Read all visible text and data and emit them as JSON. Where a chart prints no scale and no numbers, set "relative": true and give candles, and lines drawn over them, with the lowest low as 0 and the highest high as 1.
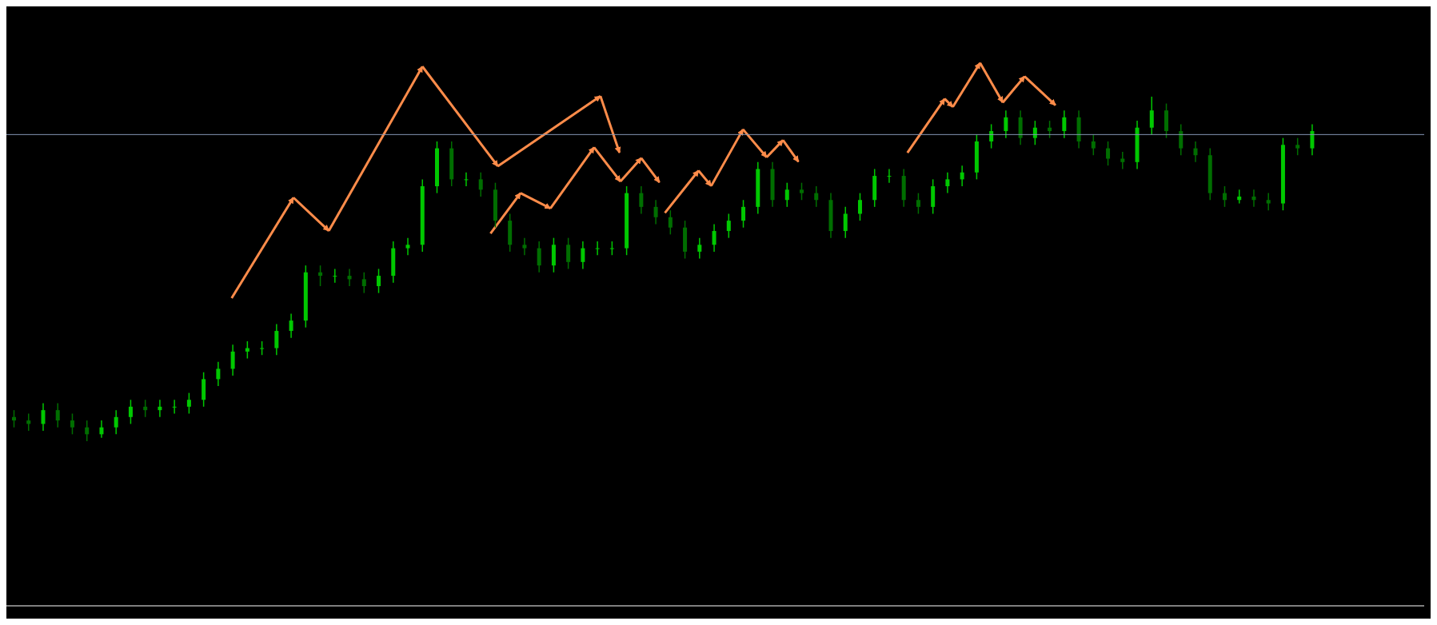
{
  "chart_data": {
    "type": "candlestick",
    "relative": true,
    "tick_labels": false,
    "categories": [
      null,
      null,
      null,
      null,
      null,
      null,
      null,
      null,
      null,
      null,
      null,
      null,
      null,
      null,
      null,
      null,
      null,
      null,
      null,
      null,
      null,
      null,
      null,
      null,
      null,
      null,
      null,
      null,
      null,
      null,
      null,
      null,
      null,
      null,
      null,
      null,
      null,
      null,
      null,
      null,
      null,
      null,
      null,
      null,
      null,
      null,
      null,
      null,
      null,
      null,
      null,
      null,
      null,
      null,
      null,
      null,
      null,
      null,
      null,
      null,
      null,
      null,
      null,
      null,
      null,
      null,
      null,
      null,
      null,
      null,
      null,
      null,
      null,
      null,
      null,
      null,
      null,
      null,
      null,
      null,
      null,
      null,
      null,
      null,
      null,
      null,
      null,
      null,
      null,
      null
    ],
    "colors": [
      "#006e00",
      "#006e00",
      "#00c800",
      "#006e00",
      "#006e00",
      "#006e00",
      "#00c800",
      "#00c800",
      "#00c800",
      "#006e00",
      "#00c800",
      "#00c800",
      "#00c800",
      "#00c800",
      "#00c800",
      "#00c800",
      "#00c800",
      "#00c800",
      "#00c800",
      "#00c800",
      "#00c800",
      "#006e00",
      "#00c800",
      "#006e00",
      "#006e00",
      "#00c800",
      "#00c800",
      "#00c800",
      "#00c800",
      "#00c800",
      "#006e00",
      "#00c800",
      "#006e00",
      "#006e00",
      "#006e00",
      "#006e00",
      "#006e00",
      "#00c800",
      "#006e00",
      "#00c800",
      "#00c800",
      "#00c800",
      "#00c800",
      "#006e00",
      "#006e00",
      "#006e00",
      "#006e00",
      "#00c800",
      "#00c800",
      "#00c800",
      "#00c800",
      "#00c800",
      "#006e00",
      "#00c800",
      "#006e00",
      "#006e00",
      "#006e00",
      "#00c800",
      "#00c800",
      "#00c800",
      "#00c800",
      "#006e00",
      "#006e00",
      "#00c800",
      "#00c800",
      "#00c800",
      "#00c800",
      "#00c800",
      "#00c800",
      "#006e00",
      "#00c800",
      "#006e00",
      "#00c800",
      "#006e00",
      "#006e00",
      "#006e00",
      "#006e00",
      "#00c800",
      "#00c800",
      "#006e00",
      "#006e00",
      "#006e00",
      "#006e00",
      "#006e00",
      "#00c800",
      "#006e00",
      "#006e00",
      "#00c800",
      "#006e00",
      "#00c800"
    ],
    "ohlc": [
      [
        0.07,
        0.09,
        0.04,
        0.06
      ],
      [
        0.06,
        0.08,
        0.03,
        0.05
      ],
      [
        0.05,
        0.11,
        0.03,
        0.09
      ],
      [
        0.09,
        0.11,
        0.04,
        0.06
      ],
      [
        0.06,
        0.08,
        0.02,
        0.04
      ],
      [
        0.04,
        0.06,
        0.0,
        0.02
      ],
      [
        0.02,
        0.06,
        0.01,
        0.04
      ],
      [
        0.04,
        0.09,
        0.02,
        0.07
      ],
      [
        0.07,
        0.12,
        0.05,
        0.1
      ],
      [
        0.1,
        0.12,
        0.07,
        0.09
      ],
      [
        0.09,
        0.12,
        0.07,
        0.1
      ],
      [
        0.1,
        0.12,
        0.08,
        0.1
      ],
      [
        0.1,
        0.14,
        0.08,
        0.12
      ],
      [
        0.12,
        0.2,
        0.1,
        0.18
      ],
      [
        0.18,
        0.23,
        0.16,
        0.21
      ],
      [
        0.21,
        0.28,
        0.19,
        0.26
      ],
      [
        0.26,
        0.29,
        0.24,
        0.27
      ],
      [
        0.27,
        0.29,
        0.25,
        0.27
      ],
      [
        0.27,
        0.34,
        0.25,
        0.32
      ],
      [
        0.32,
        0.37,
        0.3,
        0.35
      ],
      [
        0.35,
        0.51,
        0.33,
        0.49
      ],
      [
        0.49,
        0.51,
        0.45,
        0.48
      ],
      [
        0.48,
        0.5,
        0.46,
        0.48
      ],
      [
        0.48,
        0.5,
        0.45,
        0.47
      ],
      [
        0.47,
        0.49,
        0.43,
        0.45
      ],
      [
        0.45,
        0.5,
        0.43,
        0.48
      ],
      [
        0.48,
        0.58,
        0.46,
        0.56
      ],
      [
        0.56,
        0.59,
        0.54,
        0.57
      ],
      [
        0.57,
        0.76,
        0.55,
        0.74
      ],
      [
        0.74,
        0.87,
        0.72,
        0.85
      ],
      [
        0.85,
        0.87,
        0.74,
        0.76
      ],
      [
        0.76,
        0.78,
        0.74,
        0.76
      ],
      [
        0.76,
        0.78,
        0.71,
        0.73
      ],
      [
        0.73,
        0.75,
        0.62,
        0.64
      ],
      [
        0.64,
        0.66,
        0.55,
        0.57
      ],
      [
        0.57,
        0.59,
        0.54,
        0.56
      ],
      [
        0.56,
        0.58,
        0.49,
        0.51
      ],
      [
        0.51,
        0.59,
        0.49,
        0.57
      ],
      [
        0.57,
        0.59,
        0.5,
        0.52
      ],
      [
        0.52,
        0.58,
        0.5,
        0.56
      ],
      [
        0.56,
        0.58,
        0.54,
        0.56
      ],
      [
        0.56,
        0.58,
        0.54,
        0.56
      ],
      [
        0.56,
        0.74,
        0.54,
        0.72
      ],
      [
        0.72,
        0.74,
        0.66,
        0.68
      ],
      [
        0.68,
        0.7,
        0.63,
        0.65
      ],
      [
        0.65,
        0.67,
        0.6,
        0.62
      ],
      [
        0.62,
        0.64,
        0.53,
        0.55
      ],
      [
        0.55,
        0.59,
        0.53,
        0.57
      ],
      [
        0.57,
        0.63,
        0.55,
        0.61
      ],
      [
        0.61,
        0.66,
        0.59,
        0.64
      ],
      [
        0.64,
        0.7,
        0.62,
        0.68
      ],
      [
        0.68,
        0.81,
        0.66,
        0.79
      ],
      [
        0.79,
        0.81,
        0.68,
        0.7
      ],
      [
        0.7,
        0.75,
        0.68,
        0.73
      ],
      [
        0.73,
        0.75,
        0.7,
        0.72
      ],
      [
        0.72,
        0.74,
        0.68,
        0.7
      ],
      [
        0.7,
        0.72,
        0.59,
        0.61
      ],
      [
        0.61,
        0.68,
        0.59,
        0.66
      ],
      [
        0.66,
        0.72,
        0.64,
        0.7
      ],
      [
        0.7,
        0.79,
        0.68,
        0.77
      ],
      [
        0.77,
        0.79,
        0.75,
        0.77
      ],
      [
        0.77,
        0.79,
        0.68,
        0.7
      ],
      [
        0.7,
        0.72,
        0.66,
        0.68
      ],
      [
        0.68,
        0.76,
        0.66,
        0.74
      ],
      [
        0.74,
        0.78,
        0.72,
        0.76
      ],
      [
        0.76,
        0.8,
        0.74,
        0.78
      ],
      [
        0.78,
        0.89,
        0.76,
        0.87
      ],
      [
        0.87,
        0.92,
        0.85,
        0.9
      ],
      [
        0.9,
        0.96,
        0.88,
        0.94
      ],
      [
        0.94,
        0.96,
        0.86,
        0.88
      ],
      [
        0.88,
        0.93,
        0.86,
        0.91
      ],
      [
        0.91,
        0.93,
        0.88,
        0.9
      ],
      [
        0.9,
        0.96,
        0.88,
        0.94
      ],
      [
        0.94,
        0.96,
        0.85,
        0.87
      ],
      [
        0.87,
        0.89,
        0.83,
        0.85
      ],
      [
        0.85,
        0.87,
        0.8,
        0.82
      ],
      [
        0.82,
        0.84,
        0.79,
        0.81
      ],
      [
        0.81,
        0.93,
        0.79,
        0.91
      ],
      [
        0.91,
        1.0,
        0.89,
        0.96
      ],
      [
        0.96,
        0.98,
        0.88,
        0.9
      ],
      [
        0.9,
        0.92,
        0.83,
        0.85
      ],
      [
        0.85,
        0.87,
        0.81,
        0.83
      ],
      [
        0.83,
        0.85,
        0.7,
        0.72
      ],
      [
        0.72,
        0.74,
        0.68,
        0.7
      ],
      [
        0.7,
        0.73,
        0.69,
        0.71
      ],
      [
        0.71,
        0.73,
        0.68,
        0.7
      ],
      [
        0.7,
        0.72,
        0.67,
        0.69
      ],
      [
        0.69,
        0.88,
        0.67,
        0.86
      ],
      [
        0.86,
        0.88,
        0.83,
        0.85
      ],
      [
        0.85,
        0.92,
        0.83,
        0.9
      ]
    ],
    "ref_lines": [
      {
        "axis": "y",
        "value": 0.89,
        "color": "#8596b4"
      }
    ]
  }
}
